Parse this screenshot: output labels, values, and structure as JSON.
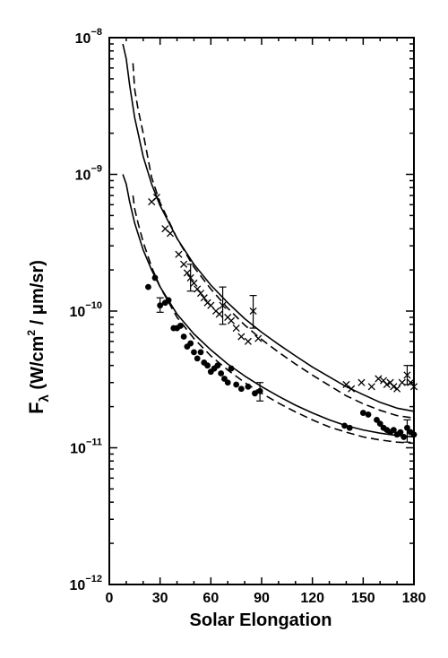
{
  "chart_data": {
    "type": "scatter",
    "xlabel": "Solar Elongation",
    "ylabel": "F_λ (W/cm² / μm/sr)",
    "ylabel_parts": {
      "f": "F",
      "sub": "λ",
      "open": " (W/cm",
      "exp": "2",
      "close": " / μm/sr)"
    },
    "xlim": [
      0,
      180
    ],
    "ylim": [
      1e-12,
      1e-08
    ],
    "yscale": "log",
    "grid": false,
    "x_ticks": [
      {
        "value": 0,
        "label": "0"
      },
      {
        "value": 30,
        "label": "30"
      },
      {
        "value": 60,
        "label": "60"
      },
      {
        "value": 90,
        "label": "90"
      },
      {
        "value": 120,
        "label": "120"
      },
      {
        "value": 150,
        "label": "150"
      },
      {
        "value": 180,
        "label": "180"
      }
    ],
    "y_ticks": [
      {
        "value": 1e-08,
        "base": "10",
        "exp": "−8"
      },
      {
        "value": 1e-09,
        "base": "10",
        "exp": "−9"
      },
      {
        "value": 1e-10,
        "base": "10",
        "exp": "−10"
      },
      {
        "value": 1e-11,
        "base": "10",
        "exp": "−11"
      },
      {
        "value": 1e-12,
        "base": "10",
        "exp": "−12"
      }
    ],
    "series": [
      {
        "marker": "cross",
        "points": [
          [
            25,
            6.3e-10
          ],
          [
            28,
            6.8e-10
          ],
          [
            33,
            4e-10
          ],
          [
            36,
            3.7e-10
          ],
          [
            41,
            2.6e-10
          ],
          [
            44,
            2.2e-10
          ],
          [
            46,
            1.9e-10
          ],
          [
            48,
            1.75e-10
          ],
          [
            50,
            1.6e-10
          ],
          [
            52,
            1.45e-10
          ],
          [
            54,
            1.35e-10
          ],
          [
            56,
            1.25e-10
          ],
          [
            58,
            1.15e-10
          ],
          [
            60,
            1.1e-10
          ],
          [
            63,
            1e-10
          ],
          [
            65,
            9.5e-11
          ],
          [
            67,
            1.1e-10
          ],
          [
            70,
            9e-11
          ],
          [
            72,
            8.5e-11
          ],
          [
            75,
            7.5e-11
          ],
          [
            78,
            6.5e-11
          ],
          [
            82,
            6e-11
          ],
          [
            85,
            1e-10
          ],
          [
            88,
            6.3e-11
          ],
          [
            140,
            2.9e-11
          ],
          [
            143,
            2.7e-11
          ],
          [
            149,
            3e-11
          ],
          [
            155,
            2.8e-11
          ],
          [
            159,
            3.2e-11
          ],
          [
            162,
            3.1e-11
          ],
          [
            164,
            2.9e-11
          ],
          [
            166,
            3e-11
          ],
          [
            168,
            2.8e-11
          ],
          [
            170,
            2.7e-11
          ],
          [
            173,
            3e-11
          ],
          [
            176,
            3.4e-11
          ],
          [
            178,
            3e-11
          ],
          [
            180,
            2.8e-11
          ]
        ],
        "error_bars": [
          {
            "x": 48,
            "low": 1.4e-10,
            "high": 2.2e-10
          },
          {
            "x": 67,
            "low": 8e-11,
            "high": 1.5e-10
          },
          {
            "x": 85,
            "low": 7.5e-11,
            "high": 1.3e-10
          },
          {
            "x": 176,
            "low": 2.9e-11,
            "high": 4e-11
          }
        ]
      },
      {
        "marker": "dot",
        "points": [
          [
            23,
            1.5e-10
          ],
          [
            27,
            1.75e-10
          ],
          [
            30,
            1.1e-10
          ],
          [
            33,
            1.15e-10
          ],
          [
            35,
            1.2e-10
          ],
          [
            38,
            7.5e-11
          ],
          [
            40,
            7.5e-11
          ],
          [
            42,
            7.8e-11
          ],
          [
            44,
            6.5e-11
          ],
          [
            46,
            5.5e-11
          ],
          [
            48,
            5.8e-11
          ],
          [
            50,
            5e-11
          ],
          [
            52,
            4.5e-11
          ],
          [
            54,
            5e-11
          ],
          [
            56,
            4.2e-11
          ],
          [
            58,
            4e-11
          ],
          [
            60,
            3.6e-11
          ],
          [
            62,
            3.8e-11
          ],
          [
            64,
            4e-11
          ],
          [
            66,
            3.5e-11
          ],
          [
            68,
            3.2e-11
          ],
          [
            70,
            3e-11
          ],
          [
            72,
            3.8e-11
          ],
          [
            75,
            2.9e-11
          ],
          [
            78,
            2.7e-11
          ],
          [
            82,
            2.8e-11
          ],
          [
            86,
            2.5e-11
          ],
          [
            89,
            2.6e-11
          ],
          [
            139,
            1.45e-11
          ],
          [
            142,
            1.4e-11
          ],
          [
            150,
            1.8e-11
          ],
          [
            153,
            1.75e-11
          ],
          [
            158,
            1.6e-11
          ],
          [
            160,
            1.5e-11
          ],
          [
            162,
            1.4e-11
          ],
          [
            164,
            1.35e-11
          ],
          [
            166,
            1.3e-11
          ],
          [
            168,
            1.35e-11
          ],
          [
            170,
            1.25e-11
          ],
          [
            172,
            1.3e-11
          ],
          [
            174,
            1.2e-11
          ],
          [
            176,
            1.4e-11
          ],
          [
            178,
            1.3e-11
          ],
          [
            180,
            1.25e-11
          ]
        ],
        "error_bars": [
          {
            "x": 30,
            "low": 9.8e-11,
            "high": 1.25e-10
          },
          {
            "x": 89,
            "low": 2.2e-11,
            "high": 3e-11
          },
          {
            "x": 176,
            "low": 1.1e-11,
            "high": 1.6e-11
          }
        ]
      }
    ],
    "curves": [
      {
        "style": "solid",
        "points": [
          [
            8,
            9e-09
          ],
          [
            10,
            7e-09
          ],
          [
            12,
            4.5e-09
          ],
          [
            15,
            2.6e-09
          ],
          [
            20,
            1.35e-09
          ],
          [
            25,
            8.5e-10
          ],
          [
            30,
            5.9e-10
          ],
          [
            40,
            3.4e-10
          ],
          [
            50,
            2.2e-10
          ],
          [
            60,
            1.55e-10
          ],
          [
            70,
            1.15e-10
          ],
          [
            80,
            8.8e-11
          ],
          [
            90,
            7e-11
          ],
          [
            100,
            5.7e-11
          ],
          [
            110,
            4.7e-11
          ],
          [
            120,
            3.9e-11
          ],
          [
            130,
            3.3e-11
          ],
          [
            140,
            2.8e-11
          ],
          [
            150,
            2.45e-11
          ],
          [
            160,
            2.15e-11
          ],
          [
            170,
            1.95e-11
          ],
          [
            180,
            1.85e-11
          ]
        ]
      },
      {
        "style": "dashed",
        "points": [
          [
            14,
            6.5e-09
          ],
          [
            15,
            4.2e-09
          ],
          [
            17,
            3e-09
          ],
          [
            20,
            2e-09
          ],
          [
            25,
            9.5e-10
          ],
          [
            30,
            6.2e-10
          ],
          [
            40,
            3.4e-10
          ],
          [
            50,
            2.1e-10
          ],
          [
            60,
            1.45e-10
          ],
          [
            70,
            1.05e-10
          ],
          [
            80,
            7.9e-11
          ],
          [
            90,
            6.2e-11
          ],
          [
            100,
            5e-11
          ],
          [
            110,
            4.1e-11
          ],
          [
            120,
            3.4e-11
          ],
          [
            130,
            2.85e-11
          ],
          [
            140,
            2.4e-11
          ],
          [
            150,
            2.1e-11
          ],
          [
            160,
            1.88e-11
          ],
          [
            170,
            1.72e-11
          ],
          [
            180,
            1.65e-11
          ]
        ]
      },
      {
        "style": "solid",
        "points": [
          [
            8,
            1e-09
          ],
          [
            10,
            8.5e-10
          ],
          [
            12,
            6.3e-10
          ],
          [
            15,
            4.4e-10
          ],
          [
            20,
            2.8e-10
          ],
          [
            25,
            2e-10
          ],
          [
            30,
            1.5e-10
          ],
          [
            40,
            9.5e-11
          ],
          [
            50,
            6.8e-11
          ],
          [
            60,
            5.2e-11
          ],
          [
            70,
            4.1e-11
          ],
          [
            80,
            3.35e-11
          ],
          [
            90,
            2.8e-11
          ],
          [
            100,
            2.38e-11
          ],
          [
            110,
            2.05e-11
          ],
          [
            120,
            1.8e-11
          ],
          [
            130,
            1.6e-11
          ],
          [
            140,
            1.45e-11
          ],
          [
            150,
            1.35e-11
          ],
          [
            160,
            1.28e-11
          ],
          [
            170,
            1.23e-11
          ],
          [
            180,
            1.2e-11
          ]
        ]
      },
      {
        "style": "dashed",
        "points": [
          [
            14,
            7e-10
          ],
          [
            15,
            5.6e-10
          ],
          [
            17,
            4.4e-10
          ],
          [
            20,
            3.2e-10
          ],
          [
            25,
            2.1e-10
          ],
          [
            30,
            1.5e-10
          ],
          [
            40,
            9e-11
          ],
          [
            50,
            6.3e-11
          ],
          [
            60,
            4.7e-11
          ],
          [
            70,
            3.7e-11
          ],
          [
            80,
            3e-11
          ],
          [
            90,
            2.5e-11
          ],
          [
            100,
            2.12e-11
          ],
          [
            110,
            1.83e-11
          ],
          [
            120,
            1.6e-11
          ],
          [
            130,
            1.42e-11
          ],
          [
            140,
            1.3e-11
          ],
          [
            150,
            1.2e-11
          ],
          [
            160,
            1.14e-11
          ],
          [
            170,
            1.1e-11
          ],
          [
            180,
            1.08e-11
          ]
        ]
      }
    ]
  }
}
